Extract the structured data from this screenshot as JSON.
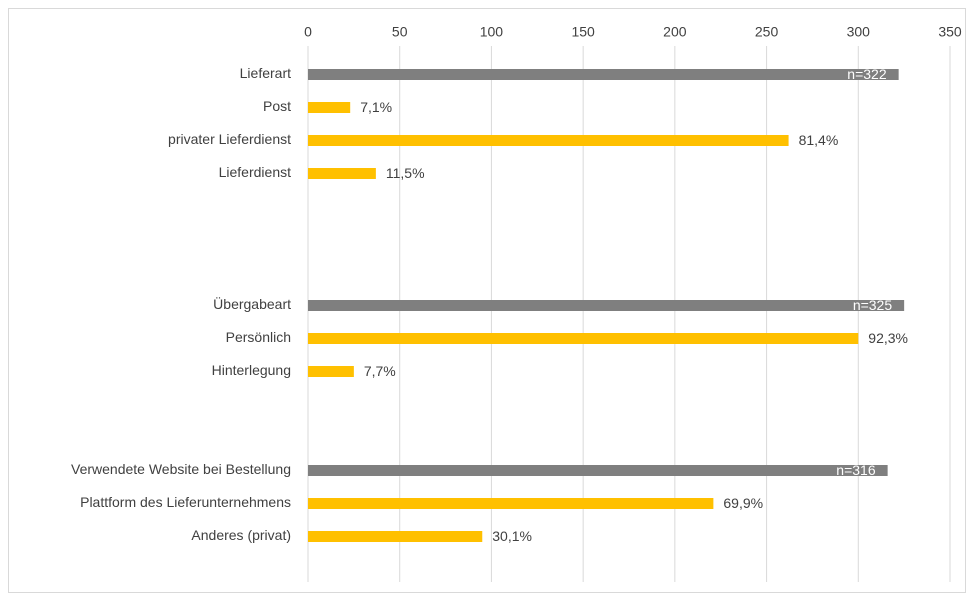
{
  "chart_data": {
    "type": "bar",
    "orientation": "horizontal",
    "categories": [
      "Lieferart",
      "Post",
      "privater Lieferdienst",
      "Lieferdienst",
      null,
      null,
      null,
      "Übergabeart",
      "Persönlich",
      "Hinterlegung",
      null,
      null,
      "Verwendete Website bei Bestellung",
      "Plattform des Lieferunternehmens",
      "Anderes (privat)",
      null
    ],
    "values": [
      322,
      23,
      262,
      37,
      null,
      null,
      null,
      325,
      300,
      25,
      null,
      null,
      316,
      221,
      95,
      null
    ],
    "value_labels": [
      "n=322",
      "7,1%",
      "81,4%",
      "11,5%",
      null,
      null,
      null,
      "n=325",
      "92,3%",
      "7,7%",
      null,
      null,
      "n=316",
      "69,9%",
      "30,1%",
      null
    ],
    "colors": [
      "#7f7f7f",
      "#ffc000",
      "#ffc000",
      "#ffc000",
      null,
      null,
      null,
      "#7f7f7f",
      "#ffc000",
      "#ffc000",
      null,
      null,
      "#7f7f7f",
      "#ffc000",
      "#ffc000",
      null
    ],
    "xlim": [
      0,
      350
    ],
    "xticks": [
      0,
      50,
      100,
      150,
      200,
      250,
      300,
      350
    ],
    "grid": true
  }
}
